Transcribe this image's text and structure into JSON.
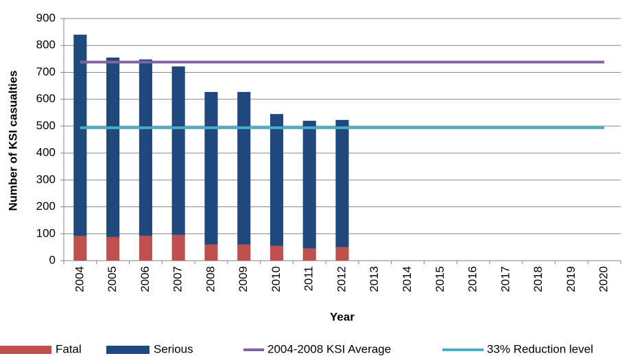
{
  "chart_data": {
    "type": "bar",
    "stacked": true,
    "x_label": "Year",
    "y_label": "Number of KSI casualties",
    "categories": [
      "2004",
      "2005",
      "2006",
      "2007",
      "2008",
      "2009",
      "2010",
      "2011",
      "2012",
      "2013",
      "2014",
      "2015",
      "2016",
      "2017",
      "2018",
      "2019",
      "2020"
    ],
    "series": [
      {
        "name": "Fatal",
        "type": "bar",
        "color": "#c0504d",
        "values": [
          92,
          88,
          92,
          95,
          60,
          60,
          55,
          45,
          50,
          null,
          null,
          null,
          null,
          null,
          null,
          null,
          null
        ]
      },
      {
        "name": "Serious",
        "type": "bar",
        "color": "#1f497d",
        "values": [
          748,
          667,
          656,
          627,
          567,
          567,
          490,
          475,
          473,
          null,
          null,
          null,
          null,
          null,
          null,
          null,
          null
        ]
      },
      {
        "name": "2004-2008 KSI Average",
        "type": "line",
        "color": "#8064a2",
        "values": [
          738,
          738,
          738,
          738,
          738,
          738,
          738,
          738,
          738,
          738,
          738,
          738,
          738,
          738,
          738,
          738,
          738
        ]
      },
      {
        "name": "33% Reduction level",
        "type": "line",
        "color": "#4bacc6",
        "values": [
          494,
          494,
          494,
          494,
          494,
          494,
          494,
          494,
          494,
          494,
          494,
          494,
          494,
          494,
          494,
          494,
          494
        ]
      }
    ],
    "ylim": [
      0,
      900
    ],
    "yticks": [
      0,
      100,
      200,
      300,
      400,
      500,
      600,
      700,
      800,
      900
    ],
    "grid": true,
    "legend": "bottom"
  }
}
